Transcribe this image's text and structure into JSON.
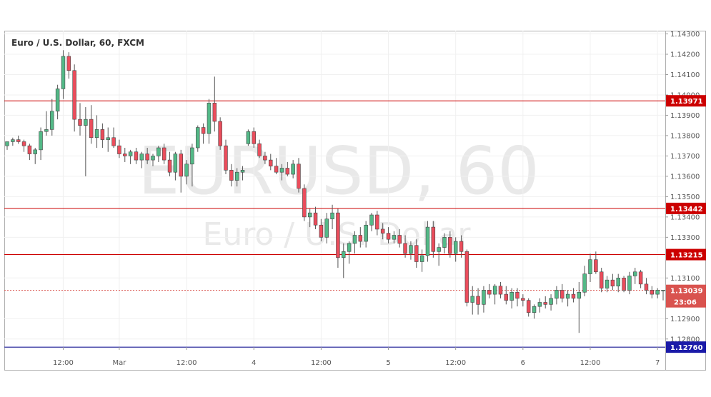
{
  "chart_data": {
    "type": "candlestick",
    "title": "Euro / U.S. Dollar, 60, FXCM",
    "watermark_symbol": "EURUSD, 60",
    "watermark_name": "Euro / U.S. Dollar",
    "y_range": [
      1.1275,
      1.143
    ],
    "y_ticks": [
      "1.14300",
      "1.14200",
      "1.14100",
      "1.14000",
      "1.13900",
      "1.13800",
      "1.13700",
      "1.13600",
      "1.13500",
      "1.13400",
      "1.13300",
      "1.13100",
      "1.12900",
      "1.12800"
    ],
    "x_ticks": [
      "12:00",
      "Mar",
      "12:00",
      "4",
      "12:00",
      "5",
      "12:00",
      "6",
      "12:00",
      "7"
    ],
    "levels": [
      {
        "value": 1.13971,
        "label": "1.13971",
        "color": "#cc0000"
      },
      {
        "value": 1.13442,
        "label": "1.13442",
        "color": "#cc0000"
      },
      {
        "value": 1.13215,
        "label": "1.13215",
        "color": "#cc0000"
      },
      {
        "value": 1.1276,
        "label": "1.12760",
        "color": "#1a1aa8"
      }
    ],
    "last_price": {
      "value": 1.13039,
      "label": "1.13039",
      "countdown": "23:06",
      "color": "#d9534f"
    },
    "candles": [
      [
        1.1375,
        1.1377,
        1.1373,
        1.1377
      ],
      [
        1.1377,
        1.1379,
        1.1375,
        1.1378
      ],
      [
        1.1378,
        1.138,
        1.1376,
        1.1377
      ],
      [
        1.1377,
        1.1378,
        1.1372,
        1.1375
      ],
      [
        1.1375,
        1.1376,
        1.1368,
        1.1371
      ],
      [
        1.1371,
        1.1374,
        1.1366,
        1.1373
      ],
      [
        1.1373,
        1.1384,
        1.1368,
        1.1382
      ],
      [
        1.1382,
        1.1392,
        1.138,
        1.1383
      ],
      [
        1.1383,
        1.1398,
        1.138,
        1.1392
      ],
      [
        1.1392,
        1.1405,
        1.1388,
        1.1403
      ],
      [
        1.1403,
        1.1422,
        1.1398,
        1.1419
      ],
      [
        1.1419,
        1.1421,
        1.1408,
        1.1412
      ],
      [
        1.1412,
        1.1415,
        1.1382,
        1.1388
      ],
      [
        1.1388,
        1.1396,
        1.138,
        1.1385
      ],
      [
        1.1385,
        1.1394,
        1.136,
        1.1388
      ],
      [
        1.1388,
        1.1395,
        1.1376,
        1.1379
      ],
      [
        1.1379,
        1.139,
        1.1374,
        1.1383
      ],
      [
        1.1383,
        1.1386,
        1.1374,
        1.1378
      ],
      [
        1.1378,
        1.1384,
        1.1372,
        1.1379
      ],
      [
        1.1379,
        1.1384,
        1.1374,
        1.1375
      ],
      [
        1.1375,
        1.1378,
        1.1369,
        1.1371
      ],
      [
        1.1371,
        1.1374,
        1.1367,
        1.137
      ],
      [
        1.137,
        1.1373,
        1.1366,
        1.1372
      ],
      [
        1.1372,
        1.1374,
        1.1366,
        1.1368
      ],
      [
        1.1368,
        1.1372,
        1.1364,
        1.1371
      ],
      [
        1.1371,
        1.1374,
        1.1366,
        1.1368
      ],
      [
        1.1368,
        1.1371,
        1.1365,
        1.137
      ],
      [
        1.137,
        1.1375,
        1.1367,
        1.1374
      ],
      [
        1.1374,
        1.1376,
        1.1366,
        1.1368
      ],
      [
        1.1368,
        1.1372,
        1.136,
        1.1362
      ],
      [
        1.1362,
        1.1372,
        1.1358,
        1.1371
      ],
      [
        1.1371,
        1.1373,
        1.1352,
        1.136
      ],
      [
        1.136,
        1.1368,
        1.1356,
        1.1366
      ],
      [
        1.1366,
        1.1376,
        1.1355,
        1.1374
      ],
      [
        1.1374,
        1.1385,
        1.1372,
        1.1384
      ],
      [
        1.1384,
        1.1386,
        1.1376,
        1.1381
      ],
      [
        1.1381,
        1.1398,
        1.1376,
        1.1396
      ],
      [
        1.1396,
        1.1409,
        1.1382,
        1.1387
      ],
      [
        1.1387,
        1.1389,
        1.1373,
        1.1375
      ],
      [
        1.1375,
        1.1378,
        1.1361,
        1.1363
      ],
      [
        1.1363,
        1.1366,
        1.1355,
        1.1358
      ],
      [
        1.1358,
        1.1364,
        1.1355,
        1.1362
      ],
      [
        1.1362,
        1.1365,
        1.1358,
        1.1363
      ],
      [
        1.1376,
        1.1383,
        1.1375,
        1.1382
      ],
      [
        1.1382,
        1.1384,
        1.1374,
        1.1376
      ],
      [
        1.1376,
        1.1378,
        1.1369,
        1.137
      ],
      [
        1.137,
        1.1372,
        1.1366,
        1.1368
      ],
      [
        1.1368,
        1.1371,
        1.1363,
        1.1365
      ],
      [
        1.1365,
        1.1369,
        1.1361,
        1.1362
      ],
      [
        1.1362,
        1.1366,
        1.1358,
        1.1364
      ],
      [
        1.1364,
        1.1367,
        1.136,
        1.1361
      ],
      [
        1.1361,
        1.1368,
        1.1359,
        1.1366
      ],
      [
        1.1366,
        1.1369,
        1.1352,
        1.1354
      ],
      [
        1.1354,
        1.1356,
        1.1338,
        1.134
      ],
      [
        1.134,
        1.1344,
        1.1335,
        1.1342
      ],
      [
        1.1342,
        1.1345,
        1.1334,
        1.1336
      ],
      [
        1.1336,
        1.1339,
        1.1328,
        1.133
      ],
      [
        1.133,
        1.1342,
        1.1327,
        1.1339
      ],
      [
        1.1339,
        1.1346,
        1.1334,
        1.1342
      ],
      [
        1.1342,
        1.1344,
        1.1315,
        1.132
      ],
      [
        1.132,
        1.1327,
        1.131,
        1.1323
      ],
      [
        1.1323,
        1.1328,
        1.1317,
        1.1327
      ],
      [
        1.1327,
        1.1333,
        1.1322,
        1.1331
      ],
      [
        1.1331,
        1.1335,
        1.1325,
        1.1328
      ],
      [
        1.1328,
        1.1338,
        1.1325,
        1.1336
      ],
      [
        1.1336,
        1.1342,
        1.1333,
        1.1341
      ],
      [
        1.1341,
        1.1343,
        1.1331,
        1.1334
      ],
      [
        1.1334,
        1.1337,
        1.1329,
        1.1332
      ],
      [
        1.1332,
        1.1335,
        1.1327,
        1.1329
      ],
      [
        1.1329,
        1.1333,
        1.1327,
        1.1331
      ],
      [
        1.1331,
        1.1334,
        1.1325,
        1.1327
      ],
      [
        1.1327,
        1.1331,
        1.132,
        1.1322
      ],
      [
        1.1322,
        1.1328,
        1.1319,
        1.1326
      ],
      [
        1.1326,
        1.1329,
        1.1315,
        1.1318
      ],
      [
        1.1318,
        1.1324,
        1.1313,
        1.1321
      ],
      [
        1.1321,
        1.1338,
        1.1318,
        1.1335
      ],
      [
        1.1335,
        1.1338,
        1.132,
        1.1323
      ],
      [
        1.1323,
        1.1327,
        1.1316,
        1.1325
      ],
      [
        1.1325,
        1.1332,
        1.1322,
        1.133
      ],
      [
        1.133,
        1.1333,
        1.132,
        1.1322
      ],
      [
        1.1322,
        1.133,
        1.1318,
        1.1328
      ],
      [
        1.1328,
        1.1331,
        1.132,
        1.1323
      ],
      [
        1.1323,
        1.1324,
        1.1296,
        1.1298
      ],
      [
        1.1298,
        1.1306,
        1.1292,
        1.1301
      ],
      [
        1.1301,
        1.1305,
        1.1292,
        1.1297
      ],
      [
        1.1297,
        1.1306,
        1.1293,
        1.1304
      ],
      [
        1.1304,
        1.1307,
        1.13,
        1.1302
      ],
      [
        1.1302,
        1.1307,
        1.1297,
        1.1306
      ],
      [
        1.1306,
        1.1308,
        1.13,
        1.1302
      ],
      [
        1.1302,
        1.1306,
        1.1297,
        1.1299
      ],
      [
        1.1299,
        1.1305,
        1.1295,
        1.1303
      ],
      [
        1.1303,
        1.1305,
        1.1296,
        1.13
      ],
      [
        1.13,
        1.1302,
        1.1296,
        1.1299
      ],
      [
        1.1299,
        1.13,
        1.1291,
        1.1293
      ],
      [
        1.1293,
        1.1297,
        1.129,
        1.1296
      ],
      [
        1.1296,
        1.13,
        1.1293,
        1.1298
      ],
      [
        1.1298,
        1.1301,
        1.1295,
        1.1297
      ],
      [
        1.1297,
        1.1302,
        1.1294,
        1.13
      ],
      [
        1.13,
        1.1306,
        1.1297,
        1.1304
      ],
      [
        1.1304,
        1.1307,
        1.1298,
        1.13
      ],
      [
        1.13,
        1.1304,
        1.1296,
        1.1302
      ],
      [
        1.1302,
        1.1305,
        1.1298,
        1.13
      ],
      [
        1.13,
        1.1308,
        1.1283,
        1.1303
      ],
      [
        1.1303,
        1.1316,
        1.1301,
        1.1312
      ],
      [
        1.1312,
        1.1322,
        1.1308,
        1.1319
      ],
      [
        1.1319,
        1.1323,
        1.1312,
        1.1313
      ],
      [
        1.1313,
        1.1315,
        1.1303,
        1.1305
      ],
      [
        1.1305,
        1.1311,
        1.1303,
        1.1309
      ],
      [
        1.1309,
        1.1312,
        1.1304,
        1.1306
      ],
      [
        1.1306,
        1.1312,
        1.1303,
        1.131
      ],
      [
        1.131,
        1.1311,
        1.1303,
        1.1304
      ],
      [
        1.1304,
        1.1313,
        1.1302,
        1.1311
      ],
      [
        1.1311,
        1.1315,
        1.1307,
        1.1313
      ],
      [
        1.1313,
        1.1314,
        1.1305,
        1.1307
      ],
      [
        1.1307,
        1.131,
        1.1302,
        1.1304
      ],
      [
        1.1304,
        1.1306,
        1.13,
        1.1302
      ],
      [
        1.1302,
        1.1305,
        1.13,
        1.1304
      ],
      [
        1.1304,
        1.1304,
        1.1299,
        1.1304
      ]
    ]
  }
}
